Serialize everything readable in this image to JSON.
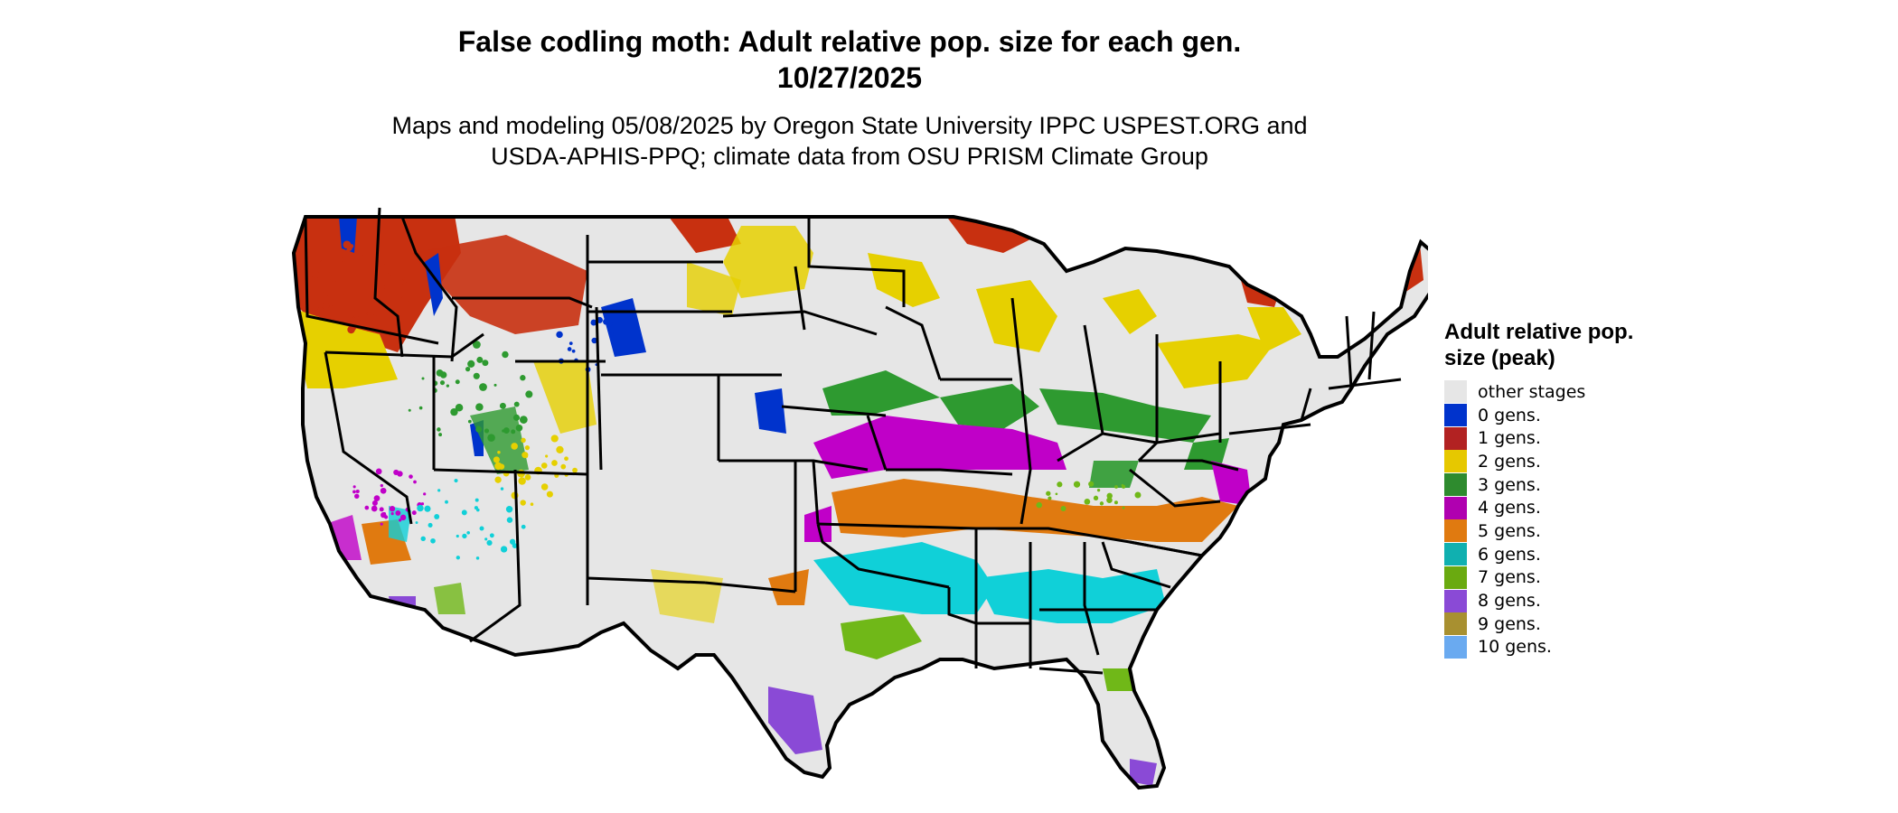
{
  "title": {
    "line1": "False codling moth: Adult relative pop. size for each gen.",
    "line2": "10/27/2025"
  },
  "subtitle": {
    "line1": "Maps and modeling 05/08/2025 by Oregon State University IPPC USPEST.ORG and",
    "line2": "USDA-APHIS-PPQ; climate data from OSU PRISM Climate Group"
  },
  "legend": {
    "title": "Adult relative pop. size (peak)",
    "items": [
      {
        "label": "other stages",
        "color": "#e6e6e6"
      },
      {
        "label": "0 gens.",
        "color": "#0033cc"
      },
      {
        "label": "1 gens.",
        "color": "#b22222"
      },
      {
        "label": "2 gens.",
        "color": "#e6c800"
      },
      {
        "label": "3 gens.",
        "color": "#2e8b2e"
      },
      {
        "label": "4 gens.",
        "color": "#b000b0"
      },
      {
        "label": "5 gens.",
        "color": "#e07a10"
      },
      {
        "label": "6 gens.",
        "color": "#10b0b0"
      },
      {
        "label": "7 gens.",
        "color": "#6aaa10"
      },
      {
        "label": "8 gens.",
        "color": "#8a4ad6"
      },
      {
        "label": "9 gens.",
        "color": "#a89030"
      },
      {
        "label": "10 gens.",
        "color": "#6aaaf0"
      }
    ]
  },
  "map": {
    "region": "Contiguous United States",
    "colors": {
      "background": "#e6e6e6",
      "border": "#000000",
      "gen0": "#0033cc",
      "gen1": "#c83010",
      "gen2": "#e6d000",
      "gen3": "#2e9a30",
      "gen4": "#c000c8",
      "gen5": "#e07a10",
      "gen6": "#10d0d8",
      "gen7": "#70b818",
      "gen8": "#8a4ad6",
      "gen9": "#a89030"
    }
  }
}
